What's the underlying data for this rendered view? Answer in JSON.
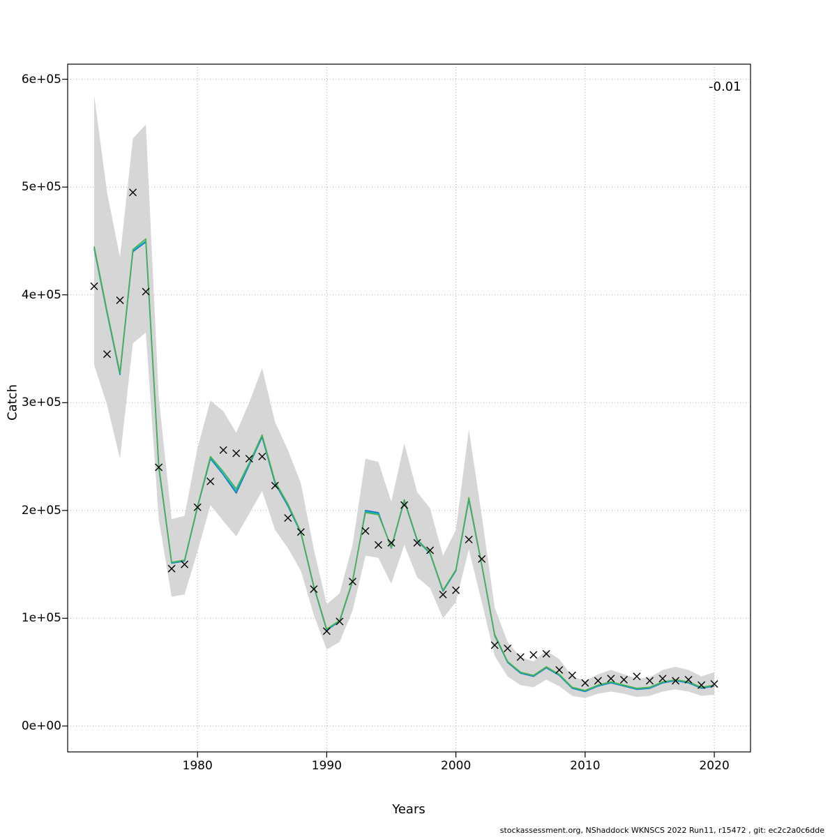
{
  "ylabel": "Catch",
  "xlabel": "Years",
  "annotation": "-0.01",
  "footer": "stockassessment.org, NShaddock WKNSCS 2022 Run11, r15472 , git: ec2c2a0c6dde",
  "chart_data": {
    "type": "line",
    "title": "",
    "xlabel": "Years",
    "ylabel": "Catch",
    "annotation": "-0.01",
    "grid": "dotted",
    "legend": "none",
    "xlim": [
      1969.95,
      2022.8
    ],
    "ylim": [
      -24000,
      614000
    ],
    "x_ticks": [
      "1980",
      "1990",
      "2000",
      "2010",
      "2020"
    ],
    "x_tick_values": [
      1980,
      1990,
      2000,
      2010,
      2020
    ],
    "y_ticks": [
      "0e+00",
      "1e+05",
      "2e+05",
      "3e+05",
      "4e+05",
      "5e+05",
      "6e+05"
    ],
    "y_tick_values": [
      0,
      100000,
      200000,
      300000,
      400000,
      500000,
      600000
    ],
    "years": [
      1972,
      1973,
      1974,
      1975,
      1976,
      1977,
      1978,
      1979,
      1980,
      1981,
      1982,
      1983,
      1984,
      1985,
      1986,
      1987,
      1988,
      1989,
      1990,
      1991,
      1992,
      1993,
      1994,
      1995,
      1996,
      1997,
      1998,
      1999,
      2000,
      2001,
      2002,
      2003,
      2004,
      2005,
      2006,
      2007,
      2008,
      2009,
      2010,
      2011,
      2012,
      2013,
      2014,
      2015,
      2016,
      2017,
      2018,
      2019,
      2020
    ],
    "observed": [
      408000,
      345000,
      395000,
      495000,
      403000,
      240000,
      146000,
      150000,
      203000,
      227000,
      256000,
      253000,
      248000,
      250000,
      223000,
      193000,
      180000,
      127000,
      88000,
      97000,
      134000,
      181000,
      168000,
      170000,
      205000,
      170000,
      163000,
      122000,
      126000,
      173000,
      155000,
      75000,
      72000,
      64000,
      66000,
      67000,
      52000,
      47000,
      40000,
      42000,
      44000,
      43000,
      46000,
      42000,
      44000,
      42000,
      43000,
      38000,
      39000
    ],
    "series": [
      {
        "name": "fit-blue",
        "color": "#2171b5",
        "values": [
          443000,
          383000,
          326000,
          440000,
          449000,
          240000,
          151000,
          153000,
          203000,
          248000,
          233000,
          216000,
          242000,
          268000,
          225000,
          204000,
          179000,
          129000,
          89000,
          97000,
          134000,
          200000,
          198000,
          165000,
          209000,
          172000,
          160000,
          125000,
          144000,
          210000,
          149000,
          84000,
          59000,
          49000,
          46000,
          54000,
          47000,
          35000,
          32000,
          37000,
          40000,
          37000,
          34000,
          35000,
          40000,
          42000,
          40000,
          35000,
          37000
        ]
      },
      {
        "name": "fit-teal",
        "color": "#00b6c9",
        "values": [
          444000,
          384000,
          327000,
          441000,
          450000,
          241000,
          151500,
          153500,
          203500,
          249000,
          234000,
          218000,
          243000,
          269000,
          226000,
          205000,
          179500,
          129500,
          89500,
          97500,
          134500,
          199000,
          197000,
          165500,
          209500,
          172500,
          160500,
          125500,
          144500,
          211000,
          149500,
          84500,
          59500,
          49500,
          46500,
          54500,
          47500,
          35500,
          32500,
          37500,
          40500,
          37500,
          34500,
          35500,
          40500,
          42500,
          40500,
          35500,
          37500
        ]
      },
      {
        "name": "fit-green",
        "color": "#4daf4a",
        "values": [
          445000,
          385000,
          328000,
          442000,
          452000,
          242000,
          152000,
          154000,
          204000,
          250000,
          236000,
          220000,
          244000,
          270000,
          227000,
          206000,
          180000,
          130000,
          90000,
          98000,
          135000,
          198000,
          196000,
          166000,
          210000,
          173000,
          161000,
          126000,
          145000,
          212000,
          150000,
          85000,
          60000,
          50000,
          47000,
          55000,
          48000,
          36000,
          33000,
          38000,
          41000,
          38000,
          35000,
          36000,
          41000,
          43000,
          41000,
          36000,
          38000
        ]
      }
    ],
    "band": {
      "color": "#d6d6d6",
      "upper": [
        585000,
        495000,
        435000,
        545000,
        558000,
        305000,
        192000,
        195000,
        258000,
        302000,
        292000,
        272000,
        300000,
        332000,
        282000,
        256000,
        225000,
        164000,
        113000,
        123000,
        168000,
        248000,
        245000,
        208000,
        262000,
        217000,
        202000,
        158000,
        182000,
        275000,
        195000,
        110000,
        78000,
        64000,
        60000,
        70000,
        62000,
        46000,
        42000,
        48000,
        52000,
        48000,
        44000,
        45000,
        52000,
        55000,
        52000,
        46000,
        50000
      ],
      "lower": [
        335000,
        298000,
        248000,
        355000,
        365000,
        192000,
        120000,
        122000,
        162000,
        205000,
        190000,
        176000,
        197000,
        218000,
        182000,
        165000,
        144000,
        103000,
        71000,
        78000,
        107000,
        158000,
        156000,
        132000,
        168000,
        138000,
        128000,
        100000,
        115000,
        164000,
        115000,
        65000,
        46000,
        38000,
        36000,
        43000,
        37000,
        28000,
        26000,
        30000,
        32000,
        30000,
        27000,
        28000,
        32000,
        34000,
        32000,
        28000,
        29000
      ]
    }
  }
}
